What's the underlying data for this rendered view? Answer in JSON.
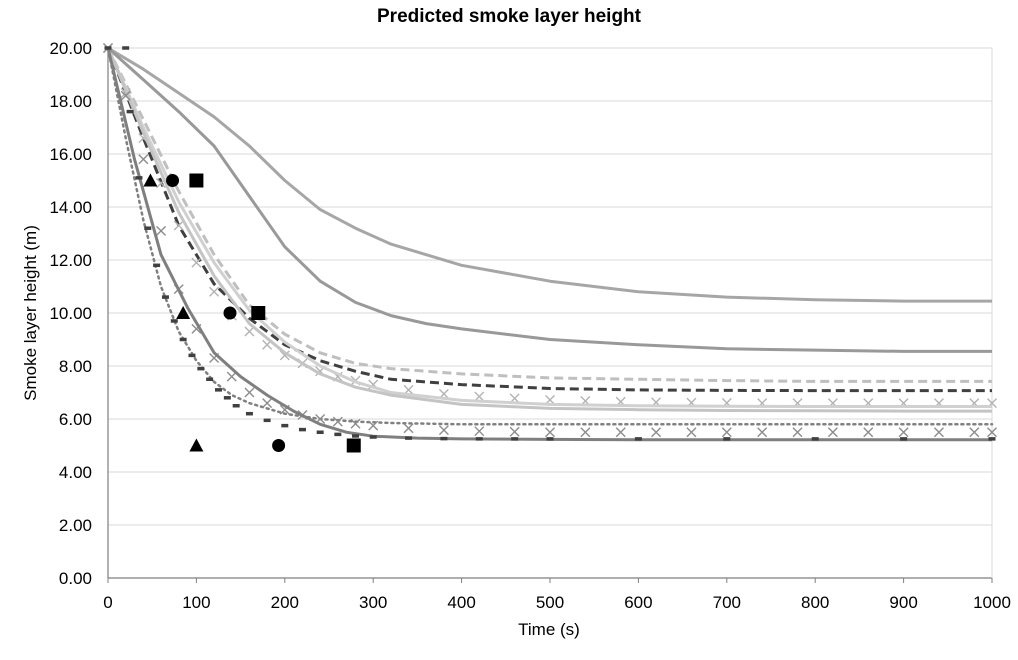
{
  "chart_data": {
    "type": "line",
    "title": "Predicted smoke layer height",
    "xlabel": "Time (s)",
    "ylabel": "Smoke layer height (m)",
    "xlim": [
      0,
      1000
    ],
    "ylim": [
      0,
      20
    ],
    "x_ticks": [
      "0",
      "100",
      "200",
      "300",
      "400",
      "500",
      "600",
      "700",
      "800",
      "900",
      "1000"
    ],
    "y_ticks": [
      "0.00",
      "2.00",
      "4.00",
      "6.00",
      "8.00",
      "10.00",
      "12.00",
      "14.00",
      "16.00",
      "18.00",
      "20.00"
    ],
    "grid": "horizontal",
    "legend": "none",
    "series": [
      {
        "style": "solid",
        "color": "#a6a6a6",
        "x": [
          0,
          40,
          80,
          120,
          160,
          200,
          240,
          280,
          320,
          360,
          400,
          500,
          600,
          700,
          800,
          900,
          1000
        ],
        "y": [
          20,
          19.2,
          18.3,
          17.4,
          16.3,
          15.0,
          13.9,
          13.2,
          12.6,
          12.2,
          11.8,
          11.2,
          10.8,
          10.6,
          10.5,
          10.45,
          10.45
        ]
      },
      {
        "style": "solid",
        "color": "#999999",
        "x": [
          0,
          40,
          80,
          120,
          160,
          200,
          240,
          280,
          320,
          360,
          400,
          500,
          600,
          700,
          800,
          900,
          1000
        ],
        "y": [
          20,
          18.8,
          17.6,
          16.3,
          14.4,
          12.5,
          11.2,
          10.4,
          9.9,
          9.6,
          9.4,
          9.0,
          8.8,
          8.65,
          8.6,
          8.55,
          8.55
        ]
      },
      {
        "style": "dashed",
        "color": "#bfbfbf",
        "x": [
          0,
          40,
          80,
          120,
          160,
          200,
          240,
          280,
          320,
          400,
          500,
          600,
          700,
          800,
          900,
          1000
        ],
        "y": [
          20,
          17.3,
          14.6,
          12.2,
          10.3,
          9.2,
          8.5,
          8.1,
          7.9,
          7.7,
          7.55,
          7.5,
          7.45,
          7.42,
          7.42,
          7.42
        ]
      },
      {
        "style": "dashed",
        "color": "#404040",
        "x": [
          0,
          40,
          80,
          120,
          160,
          200,
          240,
          280,
          320,
          400,
          500,
          600,
          700,
          800,
          900,
          1000
        ],
        "y": [
          20,
          16.6,
          13.3,
          11.1,
          9.8,
          8.8,
          8.2,
          7.8,
          7.5,
          7.3,
          7.15,
          7.1,
          7.08,
          7.07,
          7.07,
          7.07
        ]
      },
      {
        "style": "cross",
        "color": "#b3b3b3",
        "x": [
          0,
          20,
          40,
          60,
          80,
          100,
          120,
          140,
          160,
          180,
          200,
          220,
          240,
          260,
          280,
          300,
          340,
          380,
          420,
          460,
          500,
          540,
          580,
          620,
          660,
          700,
          740,
          780,
          820,
          860,
          900,
          940,
          980,
          1000
        ],
        "y": [
          20,
          18.3,
          16.6,
          14.9,
          13.3,
          11.9,
          10.8,
          9.9,
          9.3,
          8.8,
          8.4,
          8.1,
          7.8,
          7.6,
          7.45,
          7.3,
          7.1,
          6.95,
          6.85,
          6.78,
          6.72,
          6.68,
          6.65,
          6.63,
          6.62,
          6.61,
          6.6,
          6.6,
          6.6,
          6.6,
          6.6,
          6.6,
          6.6,
          6.6
        ]
      },
      {
        "style": "solid",
        "color": "#d0d0d0",
        "x": [
          0,
          40,
          80,
          120,
          160,
          200,
          240,
          280,
          320,
          400,
          500,
          600,
          700,
          800,
          900,
          1000
        ],
        "y": [
          20,
          17.0,
          14.2,
          11.9,
          10.1,
          8.9,
          8.0,
          7.4,
          7.0,
          6.7,
          6.55,
          6.5,
          6.48,
          6.47,
          6.47,
          6.47
        ]
      },
      {
        "style": "solid",
        "color": "#c4c4c4",
        "x": [
          0,
          40,
          80,
          120,
          160,
          200,
          240,
          280,
          320,
          400,
          500,
          600,
          700,
          800,
          900,
          1000
        ],
        "y": [
          20,
          16.8,
          13.8,
          11.4,
          9.6,
          8.5,
          7.7,
          7.2,
          6.9,
          6.55,
          6.4,
          6.35,
          6.32,
          6.31,
          6.3,
          6.3
        ]
      },
      {
        "style": "dotted",
        "color": "#808080",
        "x": [
          0,
          20,
          40,
          60,
          80,
          100,
          120,
          140,
          160,
          180,
          200,
          240,
          280,
          320,
          400,
          500,
          600,
          700,
          800,
          900,
          1000
        ],
        "y": [
          20,
          16.6,
          13.5,
          11.0,
          9.3,
          8.2,
          7.4,
          6.9,
          6.6,
          6.4,
          6.2,
          6.0,
          5.9,
          5.85,
          5.8,
          5.8,
          5.8,
          5.8,
          5.8,
          5.8,
          5.8
        ]
      },
      {
        "style": "cross",
        "color": "#8c8c8c",
        "x": [
          0,
          20,
          40,
          60,
          80,
          100,
          120,
          140,
          160,
          180,
          200,
          220,
          240,
          260,
          280,
          300,
          340,
          380,
          420,
          460,
          500,
          540,
          580,
          620,
          660,
          700,
          740,
          780,
          820,
          860,
          900,
          940,
          980,
          1000
        ],
        "y": [
          20,
          18.2,
          15.8,
          13.1,
          10.9,
          9.4,
          8.3,
          7.6,
          7.0,
          6.6,
          6.35,
          6.15,
          6.0,
          5.9,
          5.82,
          5.75,
          5.65,
          5.58,
          5.54,
          5.52,
          5.5,
          5.5,
          5.5,
          5.5,
          5.5,
          5.5,
          5.5,
          5.5,
          5.5,
          5.5,
          5.5,
          5.5,
          5.5,
          5.5
        ]
      },
      {
        "style": "solid",
        "color": "#7f7f7f",
        "x": [
          0,
          30,
          60,
          90,
          120,
          150,
          180,
          210,
          240,
          270,
          300,
          350,
          400,
          500,
          600,
          700,
          800,
          900,
          1000
        ],
        "y": [
          20,
          15.8,
          12.2,
          10.2,
          8.5,
          7.6,
          6.9,
          6.3,
          5.8,
          5.5,
          5.35,
          5.28,
          5.25,
          5.23,
          5.22,
          5.22,
          5.22,
          5.22,
          5.22
        ]
      },
      {
        "style": "dash-marks",
        "color": "#404040",
        "x": [
          0,
          20,
          25,
          35,
          45,
          55,
          65,
          75,
          85,
          95,
          105,
          115,
          125,
          135,
          145,
          160,
          180,
          200,
          220,
          240,
          260,
          280,
          300,
          340,
          380,
          420,
          460,
          500,
          600,
          700,
          800,
          900,
          1000
        ],
        "y": [
          20,
          20,
          17.6,
          15.1,
          13.2,
          11.8,
          10.6,
          9.7,
          9.0,
          8.4,
          7.9,
          7.5,
          7.1,
          6.8,
          6.5,
          6.2,
          5.95,
          5.75,
          5.6,
          5.5,
          5.42,
          5.36,
          5.32,
          5.28,
          5.26,
          5.25,
          5.25,
          5.25,
          5.25,
          5.25,
          5.25,
          5.25,
          5.25
        ]
      },
      {
        "style": "marker",
        "marker": "triangle",
        "color": "#000000",
        "x": [
          48,
          85,
          100
        ],
        "y": [
          15.0,
          10.0,
          5.0
        ]
      },
      {
        "style": "marker",
        "marker": "circle",
        "color": "#000000",
        "x": [
          73,
          138,
          193
        ],
        "y": [
          15.0,
          10.0,
          5.0
        ]
      },
      {
        "style": "marker",
        "marker": "square",
        "color": "#000000",
        "x": [
          100,
          170,
          278
        ],
        "y": [
          15.0,
          10.0,
          5.0
        ]
      }
    ]
  }
}
